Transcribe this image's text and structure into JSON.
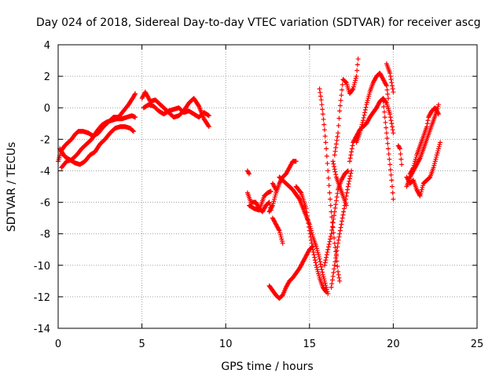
{
  "chart_data": {
    "type": "scatter",
    "title": "Day 024 of 2018, Sidereal Day-to-day VTEC variation (SDTVAR) for receiver ascg",
    "xlabel": "GPS time / hours",
    "ylabel": "SDTVAR / TECUs",
    "xlim": [
      0,
      25
    ],
    "ylim": [
      -14,
      4
    ],
    "xticks": [
      0,
      5,
      10,
      15,
      20,
      25
    ],
    "yticks": [
      -14,
      -12,
      -10,
      -8,
      -6,
      -4,
      -2,
      0,
      2,
      4
    ],
    "grid": true,
    "marker": "+",
    "colors": {
      "series": "#ff0000",
      "grid": "#a0a0a0",
      "axis": "#000000"
    },
    "series": [
      {
        "name": "",
        "segments": [
          [
            [
              0.0,
              -3.4
            ],
            [
              0.2,
              -2.7
            ],
            [
              0.4,
              -2.4
            ],
            [
              0.6,
              -2.2
            ],
            [
              0.8,
              -2.0
            ],
            [
              1.0,
              -1.7
            ],
            [
              1.2,
              -1.5
            ],
            [
              1.5,
              -1.5
            ],
            [
              1.8,
              -1.6
            ],
            [
              2.1,
              -1.8
            ],
            [
              2.4,
              -1.6
            ],
            [
              2.7,
              -1.2
            ],
            [
              3.0,
              -0.9
            ],
            [
              3.3,
              -0.6
            ],
            [
              3.6,
              -0.6
            ],
            [
              3.9,
              -0.2
            ],
            [
              4.2,
              0.2
            ],
            [
              4.5,
              0.7
            ],
            [
              4.6,
              0.9
            ]
          ],
          [
            [
              0.1,
              -2.6
            ],
            [
              0.4,
              -3.1
            ],
            [
              0.7,
              -3.3
            ],
            [
              1.0,
              -3.5
            ],
            [
              1.3,
              -3.6
            ],
            [
              1.6,
              -3.4
            ],
            [
              1.9,
              -3.0
            ],
            [
              2.2,
              -2.8
            ],
            [
              2.5,
              -2.3
            ],
            [
              2.8,
              -2.0
            ],
            [
              3.1,
              -1.6
            ],
            [
              3.4,
              -1.3
            ],
            [
              3.7,
              -1.2
            ],
            [
              4.0,
              -1.2
            ],
            [
              4.3,
              -1.3
            ],
            [
              4.5,
              -1.5
            ]
          ],
          [
            [
              0.2,
              -3.8
            ],
            [
              0.5,
              -3.4
            ],
            [
              0.8,
              -3.3
            ],
            [
              1.1,
              -3.0
            ],
            [
              1.4,
              -2.6
            ],
            [
              1.7,
              -2.3
            ],
            [
              2.0,
              -2.0
            ],
            [
              2.3,
              -1.5
            ],
            [
              2.6,
              -1.1
            ],
            [
              2.9,
              -0.9
            ],
            [
              3.2,
              -0.8
            ],
            [
              3.5,
              -0.7
            ],
            [
              3.8,
              -0.7
            ],
            [
              4.1,
              -0.6
            ],
            [
              4.4,
              -0.5
            ],
            [
              4.6,
              -0.6
            ]
          ],
          [
            [
              5.0,
              0.6
            ],
            [
              5.2,
              1.0
            ],
            [
              5.5,
              0.4
            ],
            [
              5.8,
              0.5
            ],
            [
              6.0,
              0.3
            ],
            [
              6.3,
              0.0
            ],
            [
              6.6,
              -0.3
            ],
            [
              6.9,
              -0.6
            ],
            [
              7.2,
              -0.5
            ],
            [
              7.5,
              -0.2
            ],
            [
              7.8,
              0.3
            ],
            [
              8.1,
              0.6
            ],
            [
              8.4,
              0.1
            ],
            [
              8.7,
              -0.7
            ],
            [
              9.0,
              -1.2
            ]
          ],
          [
            [
              5.1,
              0.0
            ],
            [
              5.4,
              0.2
            ],
            [
              5.7,
              0.1
            ],
            [
              6.0,
              -0.2
            ],
            [
              6.3,
              -0.4
            ],
            [
              6.6,
              -0.2
            ],
            [
              6.9,
              -0.1
            ],
            [
              7.2,
              0.0
            ],
            [
              7.5,
              -0.3
            ],
            [
              7.8,
              -0.2
            ],
            [
              8.1,
              -0.4
            ],
            [
              8.4,
              -0.6
            ],
            [
              8.7,
              -0.3
            ],
            [
              9.0,
              -0.5
            ]
          ],
          [
            [
              11.3,
              -4.0
            ],
            [
              11.4,
              -4.2
            ]
          ],
          [
            [
              11.3,
              -5.4
            ],
            [
              11.5,
              -6.0
            ],
            [
              11.8,
              -6.0
            ],
            [
              12.0,
              -6.4
            ],
            [
              12.2,
              -6.6
            ],
            [
              12.4,
              -6.2
            ],
            [
              12.6,
              -6.0
            ],
            [
              12.7,
              -6.5
            ]
          ],
          [
            [
              11.4,
              -6.2
            ],
            [
              11.7,
              -6.4
            ],
            [
              12.0,
              -6.5
            ],
            [
              12.3,
              -5.6
            ],
            [
              12.5,
              -5.4
            ],
            [
              12.7,
              -5.3
            ]
          ],
          [
            [
              12.6,
              -6.6
            ],
            [
              12.8,
              -6.2
            ],
            [
              13.0,
              -5.4
            ],
            [
              13.2,
              -4.8
            ],
            [
              13.4,
              -4.4
            ],
            [
              13.6,
              -4.2
            ],
            [
              13.8,
              -3.8
            ],
            [
              14.0,
              -3.4
            ],
            [
              14.2,
              -3.4
            ]
          ],
          [
            [
              12.8,
              -4.8
            ],
            [
              13.0,
              -5.2
            ]
          ],
          [
            [
              12.8,
              -7.0
            ],
            [
              13.0,
              -7.4
            ],
            [
              13.2,
              -7.8
            ],
            [
              13.3,
              -8.2
            ],
            [
              13.4,
              -8.6
            ]
          ],
          [
            [
              12.6,
              -11.3
            ],
            [
              12.8,
              -11.6
            ],
            [
              13.0,
              -11.9
            ],
            [
              13.2,
              -12.1
            ],
            [
              13.4,
              -11.9
            ],
            [
              13.6,
              -11.4
            ],
            [
              13.8,
              -11.0
            ],
            [
              14.0,
              -10.8
            ],
            [
              14.2,
              -10.5
            ],
            [
              14.4,
              -10.2
            ],
            [
              14.6,
              -9.8
            ],
            [
              14.8,
              -9.4
            ],
            [
              15.0,
              -9.0
            ],
            [
              15.2,
              -8.8
            ]
          ],
          [
            [
              13.2,
              -4.4
            ],
            [
              13.6,
              -4.8
            ],
            [
              14.0,
              -5.2
            ],
            [
              14.4,
              -5.8
            ],
            [
              14.7,
              -6.6
            ],
            [
              15.0,
              -7.4
            ],
            [
              15.2,
              -8.2
            ],
            [
              15.4,
              -8.8
            ],
            [
              15.6,
              -9.6
            ],
            [
              15.8,
              -10.6
            ],
            [
              16.0,
              -11.4
            ],
            [
              16.1,
              -11.8
            ]
          ],
          [
            [
              14.2,
              -5.0
            ],
            [
              14.5,
              -5.4
            ],
            [
              14.8,
              -6.4
            ],
            [
              15.0,
              -7.8
            ],
            [
              15.2,
              -9.0
            ],
            [
              15.4,
              -10.0
            ],
            [
              15.6,
              -10.8
            ],
            [
              15.8,
              -11.4
            ],
            [
              16.0,
              -11.7
            ]
          ],
          [
            [
              15.6,
              1.2
            ],
            [
              15.7,
              0.5
            ],
            [
              15.8,
              -0.4
            ],
            [
              15.9,
              -1.4
            ],
            [
              16.0,
              -2.6
            ],
            [
              16.1,
              -4.0
            ],
            [
              16.2,
              -5.4
            ],
            [
              16.3,
              -6.6
            ],
            [
              16.4,
              -7.6
            ],
            [
              16.5,
              -8.6
            ],
            [
              16.6,
              -9.4
            ],
            [
              16.7,
              -10.4
            ],
            [
              16.8,
              -11.0
            ]
          ],
          [
            [
              15.9,
              -10.0
            ],
            [
              16.1,
              -9.0
            ],
            [
              16.3,
              -8.0
            ],
            [
              16.5,
              -6.6
            ],
            [
              16.7,
              -5.2
            ],
            [
              16.9,
              -4.6
            ],
            [
              17.1,
              -4.2
            ],
            [
              17.3,
              -4.0
            ]
          ],
          [
            [
              16.3,
              -11.4
            ],
            [
              16.5,
              -10.0
            ],
            [
              16.7,
              -8.6
            ],
            [
              16.9,
              -7.4
            ],
            [
              17.1,
              -6.2
            ],
            [
              17.3,
              -5.0
            ],
            [
              17.5,
              -4.0
            ]
          ],
          [
            [
              16.4,
              -3.4
            ],
            [
              16.6,
              -4.4
            ],
            [
              16.8,
              -5.0
            ],
            [
              17.0,
              -5.6
            ],
            [
              17.2,
              -6.2
            ]
          ],
          [
            [
              16.5,
              -3.0
            ],
            [
              16.7,
              -1.6
            ],
            [
              16.8,
              -0.2
            ],
            [
              16.9,
              0.8
            ],
            [
              17.0,
              1.8
            ],
            [
              17.2,
              1.6
            ],
            [
              17.4,
              0.9
            ],
            [
              17.6,
              1.2
            ],
            [
              17.8,
              2.0
            ],
            [
              17.9,
              3.1
            ]
          ],
          [
            [
              17.4,
              -3.4
            ],
            [
              17.6,
              -2.2
            ],
            [
              17.8,
              -1.8
            ],
            [
              18.0,
              -1.4
            ],
            [
              18.2,
              -1.2
            ],
            [
              18.4,
              -1.0
            ],
            [
              18.6,
              -0.6
            ],
            [
              18.8,
              -0.3
            ],
            [
              19.0,
              0.0
            ],
            [
              19.2,
              0.4
            ],
            [
              19.4,
              0.6
            ],
            [
              19.6,
              0.3
            ],
            [
              19.8,
              -0.4
            ],
            [
              20.0,
              -1.6
            ]
          ],
          [
            [
              17.8,
              -2.2
            ],
            [
              18.0,
              -1.6
            ],
            [
              18.2,
              -0.8
            ],
            [
              18.4,
              0.2
            ],
            [
              18.6,
              1.0
            ],
            [
              18.8,
              1.6
            ],
            [
              19.0,
              2.0
            ],
            [
              19.2,
              2.2
            ],
            [
              19.4,
              1.8
            ],
            [
              19.6,
              1.4
            ],
            [
              19.7,
              0.6
            ]
          ],
          [
            [
              19.4,
              0.4
            ],
            [
              19.5,
              -0.6
            ],
            [
              19.6,
              -1.6
            ],
            [
              19.7,
              -2.6
            ],
            [
              19.8,
              -3.6
            ],
            [
              19.9,
              -4.6
            ],
            [
              20.0,
              -5.8
            ]
          ],
          [
            [
              19.6,
              2.8
            ],
            [
              19.8,
              2.2
            ],
            [
              20.0,
              1.0
            ]
          ],
          [
            [
              20.3,
              -2.4
            ],
            [
              20.4,
              -2.6
            ],
            [
              20.5,
              -3.6
            ]
          ],
          [
            [
              20.8,
              -4.4
            ],
            [
              21.0,
              -4.8
            ],
            [
              21.2,
              -4.6
            ],
            [
              21.4,
              -5.2
            ],
            [
              21.6,
              -5.6
            ],
            [
              21.8,
              -4.8
            ],
            [
              22.0,
              -4.6
            ],
            [
              22.2,
              -4.4
            ],
            [
              22.4,
              -3.8
            ],
            [
              22.6,
              -3.0
            ],
            [
              22.8,
              -2.2
            ]
          ],
          [
            [
              20.8,
              -5.0
            ],
            [
              21.0,
              -4.4
            ],
            [
              21.2,
              -4.0
            ],
            [
              21.4,
              -3.6
            ],
            [
              21.6,
              -3.2
            ],
            [
              21.8,
              -2.6
            ],
            [
              22.0,
              -2.0
            ],
            [
              22.2,
              -1.4
            ],
            [
              22.4,
              -0.8
            ],
            [
              22.6,
              -0.2
            ],
            [
              22.7,
              0.2
            ]
          ],
          [
            [
              21.0,
              -4.2
            ],
            [
              21.2,
              -3.8
            ],
            [
              21.4,
              -3.0
            ],
            [
              21.6,
              -2.4
            ],
            [
              21.8,
              -1.8
            ],
            [
              22.0,
              -1.2
            ],
            [
              22.1,
              -0.6
            ],
            [
              22.3,
              -0.2
            ],
            [
              22.5,
              0.0
            ],
            [
              22.7,
              -0.4
            ]
          ]
        ]
      }
    ]
  }
}
